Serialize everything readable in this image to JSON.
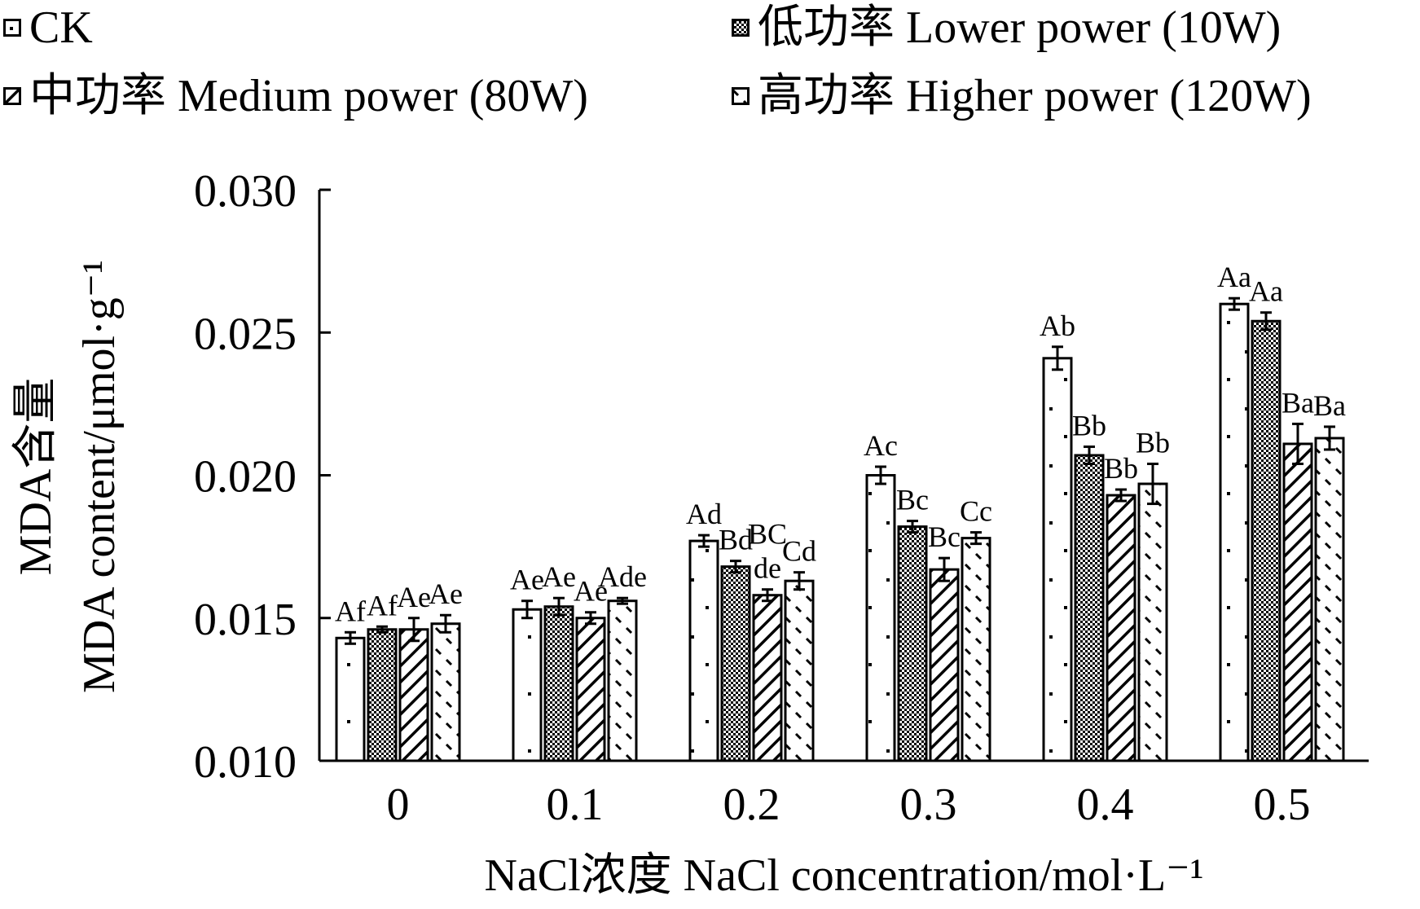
{
  "chart_data": {
    "type": "bar",
    "title": "",
    "xlabel": "NaCl浓度 NaCl concentration/mol·L⁻¹",
    "ylabel_cn": "MDA含量",
    "ylabel_en": "MDA content/μmol·g⁻¹",
    "categories": [
      "0",
      "0.1",
      "0.2",
      "0.3",
      "0.4",
      "0.5"
    ],
    "ylim": [
      0.01,
      0.03
    ],
    "y_ticks": [
      "0.010",
      "0.015",
      "0.020",
      "0.025",
      "0.030"
    ],
    "legend_placement": "top",
    "series": [
      {
        "name": "CK",
        "pattern": "dots",
        "values": [
          0.0143,
          0.0153,
          0.0177,
          0.02,
          0.0241,
          0.026
        ],
        "errors": [
          0.0002,
          0.0003,
          0.0002,
          0.0003,
          0.0004,
          0.0002
        ],
        "labels": [
          "Af",
          "Ae",
          "Ad",
          "Ac",
          "Ab",
          "Aa"
        ]
      },
      {
        "name": "低功率 Lower power (10W)",
        "pattern": "checker",
        "values": [
          0.0146,
          0.0154,
          0.0168,
          0.0182,
          0.0207,
          0.0254
        ],
        "errors": [
          0.0001,
          0.0003,
          0.0002,
          0.0002,
          0.0003,
          0.0003
        ],
        "labels": [
          "Af",
          "Ae",
          "Bd",
          "Bc",
          "Bb",
          "Aa"
        ]
      },
      {
        "name": "中功率 Medium power (80W)",
        "pattern": "diagonal",
        "values": [
          0.0146,
          0.015,
          0.0158,
          0.0167,
          0.0193,
          0.0211
        ],
        "errors": [
          0.0004,
          0.0002,
          0.0002,
          0.0004,
          0.0002,
          0.0007
        ],
        "labels": [
          "Ae",
          "Ae",
          "BC de",
          "Bc",
          "Bb",
          "Ba"
        ]
      },
      {
        "name": "高功率 Higher power (120W)",
        "pattern": "dashes",
        "values": [
          0.0148,
          0.0156,
          0.0163,
          0.0178,
          0.0197,
          0.0213
        ],
        "errors": [
          0.0003,
          0.0001,
          0.0003,
          0.0002,
          0.0007,
          0.0004
        ],
        "labels": [
          "Ae",
          "Ade",
          "Cd",
          "Cc",
          "Bb",
          "Ba"
        ]
      }
    ]
  }
}
